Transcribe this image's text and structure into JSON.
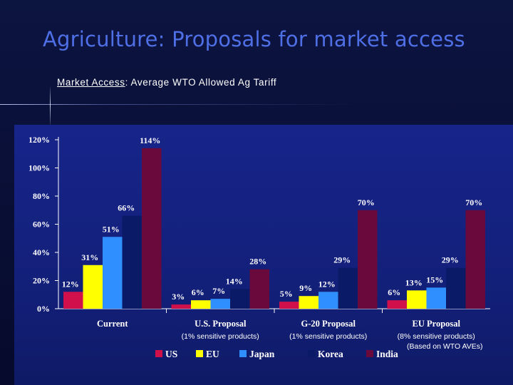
{
  "slide": {
    "title": "Agriculture:  Proposals for market access",
    "subtitle_prefix": "Market Access",
    "subtitle_rest": ":  Average WTO Allowed Ag Tariff"
  },
  "colors": {
    "US": "#d0104a",
    "EU": "#ffff00",
    "Japan": "#2f8fff",
    "Korea": "#0a1a66",
    "India": "#6a0a3c"
  },
  "chart_data": {
    "type": "bar",
    "categories": [
      "Current",
      "U.S. Proposal",
      "G-20 Proposal",
      "EU Proposal"
    ],
    "category_notes": [
      "",
      "(1% sensitive products)",
      "(1% sensitive products)",
      "(8% sensitive products)"
    ],
    "extra_note": "(Based on WTO AVEs)",
    "series": [
      {
        "name": "US",
        "values": [
          12,
          3,
          5,
          6
        ],
        "labels": [
          "12%",
          "3%",
          "5%",
          "6%"
        ]
      },
      {
        "name": "EU",
        "values": [
          31,
          6,
          9,
          13
        ],
        "labels": [
          "31%",
          "6%",
          "9%",
          "13%"
        ]
      },
      {
        "name": "Japan",
        "values": [
          51,
          7,
          12,
          15
        ],
        "labels": [
          "51%",
          "7%",
          "12%",
          "15%"
        ]
      },
      {
        "name": "Korea",
        "values": [
          66,
          14,
          29,
          29
        ],
        "labels": [
          "66%",
          "14%",
          "29%",
          "29%"
        ]
      },
      {
        "name": "India",
        "values": [
          114,
          28,
          70,
          70
        ],
        "labels": [
          "114%",
          "28%",
          "70%",
          "70%"
        ]
      }
    ],
    "yticks": [
      "0%",
      "20%",
      "40%",
      "60%",
      "80%",
      "100%",
      "120%"
    ],
    "ylim": [
      0,
      120
    ],
    "legend_position": "bottom",
    "grid": false
  }
}
